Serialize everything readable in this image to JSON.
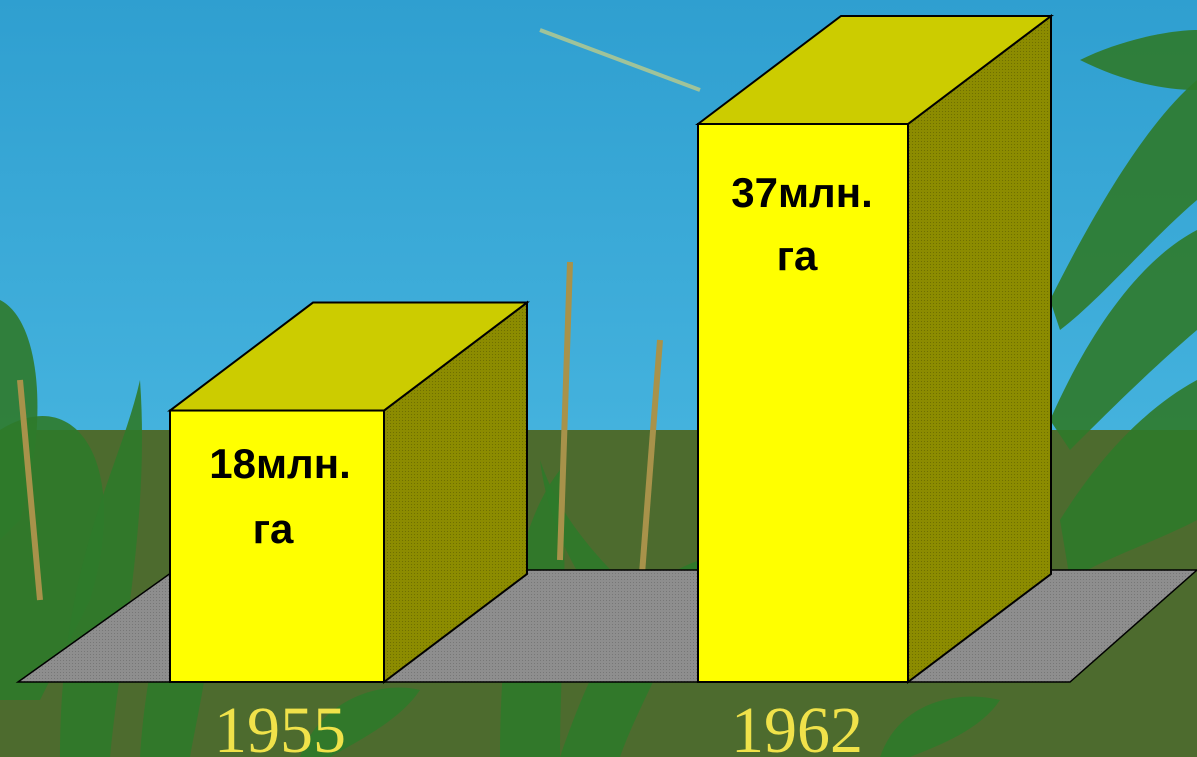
{
  "colors": {
    "sky": "#36a9d8",
    "bar_front": "#ffff00",
    "bar_top": "#cccc00",
    "bar_side": "#8c8c00",
    "floor": "#8c8c8c",
    "year_text": "#f0e24a",
    "corn_leaf": "#2f7a2a",
    "corn_tassel": "#a8924a"
  },
  "chart_data": {
    "type": "bar",
    "style": "3d",
    "categories": [
      "1955",
      "1962"
    ],
    "values": [
      18,
      37
    ],
    "unit": "млн. га",
    "bar_labels": [
      {
        "line1": "18млн.",
        "line2": "га"
      },
      {
        "line1": "37млн.",
        "line2": "га"
      }
    ],
    "title": "",
    "xlabel": "",
    "ylabel": "",
    "ylim": [
      0,
      40
    ],
    "grid": false,
    "legend": "none"
  }
}
